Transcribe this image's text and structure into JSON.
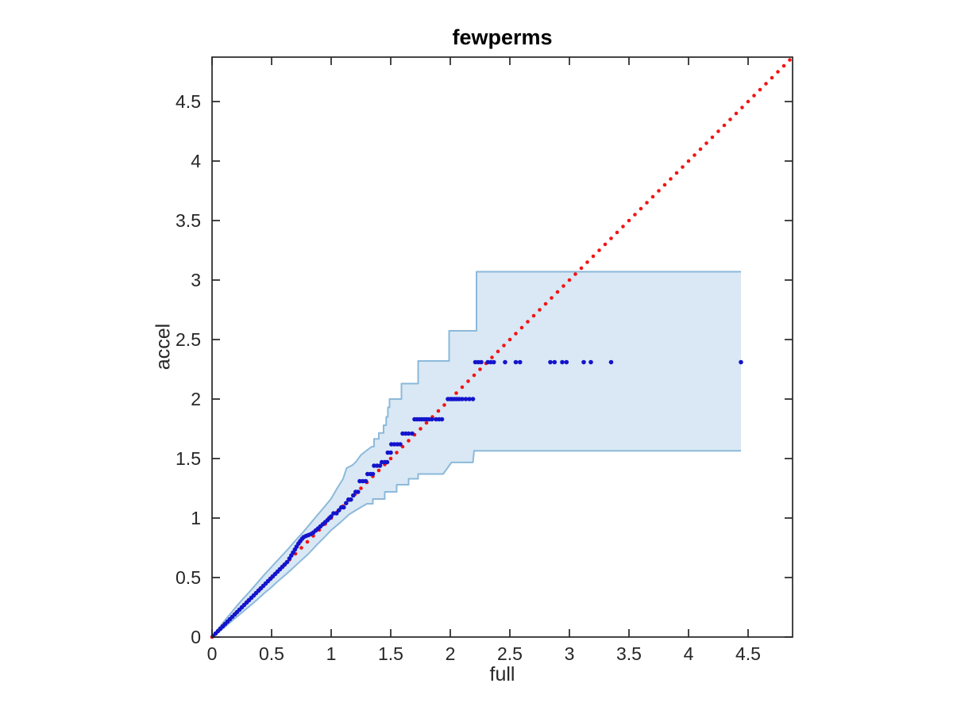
{
  "window": {
    "background": "#ffffff"
  },
  "chart_data": {
    "type": "scatter",
    "title": "fewperms",
    "xlabel": "full",
    "ylabel": "accel",
    "xlim": [
      0,
      4.873
    ],
    "ylim": [
      0,
      4.873
    ],
    "grid": false,
    "legend": null,
    "xticks": [
      0,
      0.5,
      1,
      1.5,
      2,
      2.5,
      3,
      3.5,
      4,
      4.5
    ],
    "yticks": [
      0,
      0.5,
      1,
      1.5,
      2,
      2.5,
      3,
      3.5,
      4,
      4.5
    ],
    "xtick_labels": [
      "0",
      "0.5",
      "1",
      "1.5",
      "2",
      "2.5",
      "3",
      "3.5",
      "4",
      "4.5"
    ],
    "ytick_labels": [
      "0",
      "0.5",
      "1",
      "1.5",
      "2",
      "2.5",
      "3",
      "3.5",
      "4",
      "4.5"
    ],
    "colors": {
      "scatter": "#1414cc",
      "reference_line": "#f21414",
      "band_fill": "#d9e8f4",
      "band_edge": "#8cb9da",
      "axis": "#262626",
      "tick_label": "#262626",
      "title": "#000000"
    },
    "reference_line": {
      "type": "identity",
      "style": "dotted",
      "from": [
        0,
        0
      ],
      "to": [
        4.873,
        4.873
      ],
      "dot_step": 0.05
    },
    "confidence_band": {
      "upper": [
        [
          0,
          0
        ],
        [
          0.06,
          0.08
        ],
        [
          0.12,
          0.155
        ],
        [
          0.19,
          0.24
        ],
        [
          0.25,
          0.31
        ],
        [
          0.31,
          0.375
        ],
        [
          0.38,
          0.455
        ],
        [
          0.44,
          0.525
        ],
        [
          0.5,
          0.59
        ],
        [
          0.56,
          0.655
        ],
        [
          0.63,
          0.73
        ],
        [
          0.69,
          0.8
        ],
        [
          0.75,
          0.865
        ],
        [
          0.81,
          0.935
        ],
        [
          0.88,
          1.02
        ],
        [
          0.94,
          1.09
        ],
        [
          1.0,
          1.163
        ],
        [
          1.05,
          1.25
        ],
        [
          1.1,
          1.33
        ],
        [
          1.13,
          1.42
        ],
        [
          1.18,
          1.445
        ],
        [
          1.21,
          1.475
        ],
        [
          1.25,
          1.53
        ],
        [
          1.3,
          1.57
        ],
        [
          1.34,
          1.6
        ],
        [
          1.36,
          1.6
        ],
        [
          1.36,
          1.665
        ],
        [
          1.4,
          1.665
        ],
        [
          1.4,
          1.715
        ],
        [
          1.44,
          1.715
        ],
        [
          1.44,
          1.78
        ],
        [
          1.462,
          1.78
        ],
        [
          1.462,
          1.85
        ],
        [
          1.476,
          1.85
        ],
        [
          1.476,
          1.93
        ],
        [
          1.49,
          1.93
        ],
        [
          1.49,
          2.0
        ],
        [
          1.59,
          2.0
        ],
        [
          1.59,
          2.13
        ],
        [
          1.73,
          2.13
        ],
        [
          1.73,
          2.32
        ],
        [
          1.99,
          2.32
        ],
        [
          1.99,
          2.573
        ],
        [
          2.22,
          2.573
        ],
        [
          2.22,
          3.07
        ],
        [
          4.44,
          3.07
        ]
      ],
      "lower": [
        [
          0,
          0
        ],
        [
          0.06,
          0.045
        ],
        [
          0.12,
          0.095
        ],
        [
          0.19,
          0.155
        ],
        [
          0.25,
          0.205
        ],
        [
          0.31,
          0.255
        ],
        [
          0.38,
          0.315
        ],
        [
          0.44,
          0.37
        ],
        [
          0.5,
          0.42
        ],
        [
          0.56,
          0.475
        ],
        [
          0.63,
          0.535
        ],
        [
          0.69,
          0.59
        ],
        [
          0.75,
          0.645
        ],
        [
          0.81,
          0.7
        ],
        [
          0.88,
          0.775
        ],
        [
          0.94,
          0.835
        ],
        [
          1.0,
          0.898
        ],
        [
          1.08,
          0.965
        ],
        [
          1.15,
          1.03
        ],
        [
          1.244,
          1.087
        ],
        [
          1.3,
          1.12
        ],
        [
          1.35,
          1.12
        ],
        [
          1.35,
          1.16
        ],
        [
          1.45,
          1.16
        ],
        [
          1.45,
          1.22
        ],
        [
          1.55,
          1.22
        ],
        [
          1.55,
          1.28
        ],
        [
          1.65,
          1.28
        ],
        [
          1.65,
          1.33
        ],
        [
          1.73,
          1.33
        ],
        [
          1.73,
          1.37
        ],
        [
          1.94,
          1.37
        ],
        [
          2.01,
          1.467
        ],
        [
          2.19,
          1.467
        ],
        [
          2.2,
          1.565
        ],
        [
          4.44,
          1.565
        ]
      ]
    },
    "series": [
      {
        "name": "quantile-pairs",
        "points": [
          [
            0.01,
            0.01
          ],
          [
            0.03,
            0.03
          ],
          [
            0.05,
            0.05
          ],
          [
            0.07,
            0.07
          ],
          [
            0.09,
            0.09
          ],
          [
            0.11,
            0.11
          ],
          [
            0.13,
            0.13
          ],
          [
            0.15,
            0.15
          ],
          [
            0.17,
            0.17
          ],
          [
            0.19,
            0.19
          ],
          [
            0.21,
            0.21
          ],
          [
            0.23,
            0.23
          ],
          [
            0.25,
            0.25
          ],
          [
            0.27,
            0.27
          ],
          [
            0.29,
            0.29
          ],
          [
            0.31,
            0.31
          ],
          [
            0.33,
            0.33
          ],
          [
            0.35,
            0.35
          ],
          [
            0.37,
            0.37
          ],
          [
            0.39,
            0.39
          ],
          [
            0.41,
            0.41
          ],
          [
            0.43,
            0.43
          ],
          [
            0.45,
            0.45
          ],
          [
            0.47,
            0.47
          ],
          [
            0.49,
            0.49
          ],
          [
            0.51,
            0.51
          ],
          [
            0.53,
            0.53
          ],
          [
            0.55,
            0.55
          ],
          [
            0.57,
            0.57
          ],
          [
            0.59,
            0.59
          ],
          [
            0.61,
            0.61
          ],
          [
            0.63,
            0.63
          ],
          [
            0.65,
            0.66
          ],
          [
            0.665,
            0.685
          ],
          [
            0.68,
            0.71
          ],
          [
            0.695,
            0.735
          ],
          [
            0.71,
            0.76
          ],
          [
            0.725,
            0.785
          ],
          [
            0.74,
            0.805
          ],
          [
            0.755,
            0.825
          ],
          [
            0.77,
            0.84
          ],
          [
            0.79,
            0.85
          ],
          [
            0.81,
            0.857
          ],
          [
            0.83,
            0.865
          ],
          [
            0.85,
            0.878
          ],
          [
            0.87,
            0.895
          ],
          [
            0.89,
            0.912
          ],
          [
            0.91,
            0.93
          ],
          [
            0.93,
            0.948
          ],
          [
            0.95,
            0.965
          ],
          [
            0.97,
            0.983
          ],
          [
            0.985,
            1.0
          ],
          [
            1.0,
            1.013
          ],
          [
            1.02,
            1.04
          ],
          [
            1.045,
            1.04
          ],
          [
            1.065,
            1.065
          ],
          [
            1.085,
            1.09
          ],
          [
            1.105,
            1.09
          ],
          [
            1.125,
            1.125
          ],
          [
            1.145,
            1.155
          ],
          [
            1.165,
            1.155
          ],
          [
            1.185,
            1.19
          ],
          [
            1.205,
            1.22
          ],
          [
            1.225,
            1.22
          ],
          [
            1.24,
            1.31
          ],
          [
            1.265,
            1.31
          ],
          [
            1.29,
            1.31
          ],
          [
            1.305,
            1.37
          ],
          [
            1.33,
            1.37
          ],
          [
            1.35,
            1.37
          ],
          [
            1.36,
            1.44
          ],
          [
            1.385,
            1.44
          ],
          [
            1.41,
            1.44
          ],
          [
            1.425,
            1.47
          ],
          [
            1.45,
            1.47
          ],
          [
            1.47,
            1.47
          ],
          [
            1.475,
            1.55
          ],
          [
            1.5,
            1.55
          ],
          [
            1.505,
            1.62
          ],
          [
            1.53,
            1.62
          ],
          [
            1.555,
            1.62
          ],
          [
            1.58,
            1.62
          ],
          [
            1.6,
            1.71
          ],
          [
            1.625,
            1.71
          ],
          [
            1.65,
            1.71
          ],
          [
            1.68,
            1.71
          ],
          [
            1.7,
            1.83
          ],
          [
            1.72,
            1.83
          ],
          [
            1.74,
            1.83
          ],
          [
            1.76,
            1.83
          ],
          [
            1.78,
            1.83
          ],
          [
            1.8,
            1.83
          ],
          [
            1.82,
            1.83
          ],
          [
            1.845,
            1.83
          ],
          [
            1.88,
            1.83
          ],
          [
            1.905,
            1.83
          ],
          [
            1.93,
            1.83
          ],
          [
            1.98,
            2.0
          ],
          [
            2.0,
            2.0
          ],
          [
            2.015,
            2.0
          ],
          [
            2.035,
            2.0
          ],
          [
            2.055,
            2.0
          ],
          [
            2.075,
            2.0
          ],
          [
            2.1,
            2.0
          ],
          [
            2.13,
            2.0
          ],
          [
            2.16,
            2.0
          ],
          [
            2.19,
            2.0
          ],
          [
            2.21,
            2.31
          ],
          [
            2.235,
            2.31
          ],
          [
            2.26,
            2.31
          ],
          [
            2.315,
            2.31
          ],
          [
            2.34,
            2.31
          ],
          [
            2.365,
            2.31
          ],
          [
            2.46,
            2.31
          ],
          [
            2.55,
            2.31
          ],
          [
            2.585,
            2.31
          ],
          [
            2.84,
            2.31
          ],
          [
            2.875,
            2.31
          ],
          [
            2.94,
            2.31
          ],
          [
            2.975,
            2.31
          ],
          [
            3.12,
            2.31
          ],
          [
            3.18,
            2.31
          ],
          [
            3.35,
            2.31
          ],
          [
            4.44,
            2.31
          ]
        ]
      }
    ]
  }
}
